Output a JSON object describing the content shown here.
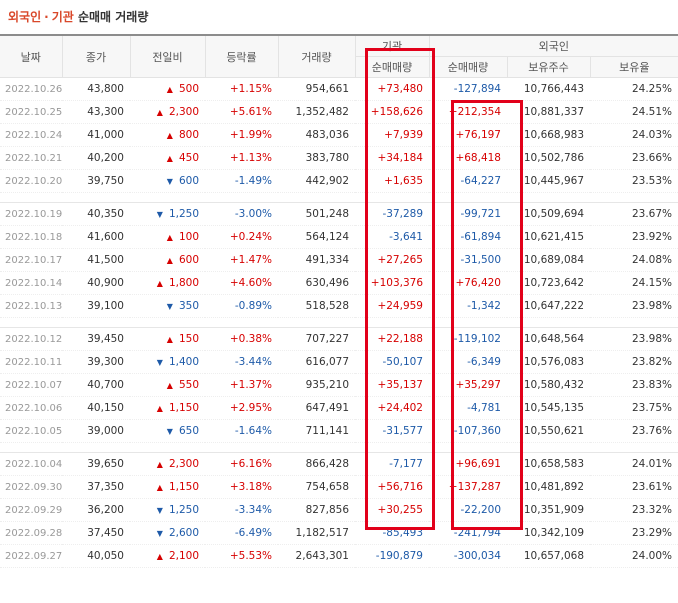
{
  "title": {
    "part1": "외국인",
    "separator": "·",
    "part2": "기관",
    "part3": "순매매 거래량"
  },
  "header": {
    "date": "날짜",
    "close": "종가",
    "change": "전일비",
    "rate": "등락률",
    "volume": "거래량",
    "inst_group": "기관",
    "inst_net": "순매매량",
    "foreign_group": "외국인",
    "foreign_net": "순매매량",
    "foreign_shares": "보유주수",
    "foreign_ratio": "보유율"
  },
  "groups": [
    [
      {
        "date": "2022.10.26",
        "close": "43,800",
        "dir": "up",
        "change": "500",
        "rate": "+1.15%",
        "volume": "954,661",
        "inst": "+73,480",
        "foreign": "-127,894",
        "shares": "10,766,443",
        "ratio": "24.25%"
      },
      {
        "date": "2022.10.25",
        "close": "43,300",
        "dir": "up",
        "change": "2,300",
        "rate": "+5.61%",
        "volume": "1,352,482",
        "inst": "+158,626",
        "foreign": "+212,354",
        "shares": "10,881,337",
        "ratio": "24.51%"
      },
      {
        "date": "2022.10.24",
        "close": "41,000",
        "dir": "up",
        "change": "800",
        "rate": "+1.99%",
        "volume": "483,036",
        "inst": "+7,939",
        "foreign": "+76,197",
        "shares": "10,668,983",
        "ratio": "24.03%"
      },
      {
        "date": "2022.10.21",
        "close": "40,200",
        "dir": "up",
        "change": "450",
        "rate": "+1.13%",
        "volume": "383,780",
        "inst": "+34,184",
        "foreign": "+68,418",
        "shares": "10,502,786",
        "ratio": "23.66%"
      },
      {
        "date": "2022.10.20",
        "close": "39,750",
        "dir": "down",
        "change": "600",
        "rate": "-1.49%",
        "volume": "442,902",
        "inst": "+1,635",
        "foreign": "-64,227",
        "shares": "10,445,967",
        "ratio": "23.53%"
      }
    ],
    [
      {
        "date": "2022.10.19",
        "close": "40,350",
        "dir": "down",
        "change": "1,250",
        "rate": "-3.00%",
        "volume": "501,248",
        "inst": "-37,289",
        "foreign": "-99,721",
        "shares": "10,509,694",
        "ratio": "23.67%"
      },
      {
        "date": "2022.10.18",
        "close": "41,600",
        "dir": "up",
        "change": "100",
        "rate": "+0.24%",
        "volume": "564,124",
        "inst": "-3,641",
        "foreign": "-61,894",
        "shares": "10,621,415",
        "ratio": "23.92%"
      },
      {
        "date": "2022.10.17",
        "close": "41,500",
        "dir": "up",
        "change": "600",
        "rate": "+1.47%",
        "volume": "491,334",
        "inst": "+27,265",
        "foreign": "-31,500",
        "shares": "10,689,084",
        "ratio": "24.08%"
      },
      {
        "date": "2022.10.14",
        "close": "40,900",
        "dir": "up",
        "change": "1,800",
        "rate": "+4.60%",
        "volume": "630,496",
        "inst": "+103,376",
        "foreign": "+76,420",
        "shares": "10,723,642",
        "ratio": "24.15%"
      },
      {
        "date": "2022.10.13",
        "close": "39,100",
        "dir": "down",
        "change": "350",
        "rate": "-0.89%",
        "volume": "518,528",
        "inst": "+24,959",
        "foreign": "-1,342",
        "shares": "10,647,222",
        "ratio": "23.98%"
      }
    ],
    [
      {
        "date": "2022.10.12",
        "close": "39,450",
        "dir": "up",
        "change": "150",
        "rate": "+0.38%",
        "volume": "707,227",
        "inst": "+22,188",
        "foreign": "-119,102",
        "shares": "10,648,564",
        "ratio": "23.98%"
      },
      {
        "date": "2022.10.11",
        "close": "39,300",
        "dir": "down",
        "change": "1,400",
        "rate": "-3.44%",
        "volume": "616,077",
        "inst": "-50,107",
        "foreign": "-6,349",
        "shares": "10,576,083",
        "ratio": "23.82%"
      },
      {
        "date": "2022.10.07",
        "close": "40,700",
        "dir": "up",
        "change": "550",
        "rate": "+1.37%",
        "volume": "935,210",
        "inst": "+35,137",
        "foreign": "+35,297",
        "shares": "10,580,432",
        "ratio": "23.83%"
      },
      {
        "date": "2022.10.06",
        "close": "40,150",
        "dir": "up",
        "change": "1,150",
        "rate": "+2.95%",
        "volume": "647,491",
        "inst": "+24,402",
        "foreign": "-4,781",
        "shares": "10,545,135",
        "ratio": "23.75%"
      },
      {
        "date": "2022.10.05",
        "close": "39,000",
        "dir": "down",
        "change": "650",
        "rate": "-1.64%",
        "volume": "711,141",
        "inst": "-31,577",
        "foreign": "-107,360",
        "shares": "10,550,621",
        "ratio": "23.76%"
      }
    ],
    [
      {
        "date": "2022.10.04",
        "close": "39,650",
        "dir": "up",
        "change": "2,300",
        "rate": "+6.16%",
        "volume": "866,428",
        "inst": "-7,177",
        "foreign": "+96,691",
        "shares": "10,658,583",
        "ratio": "24.01%"
      },
      {
        "date": "2022.09.30",
        "close": "37,350",
        "dir": "up",
        "change": "1,150",
        "rate": "+3.18%",
        "volume": "754,658",
        "inst": "+56,716",
        "foreign": "+137,287",
        "shares": "10,481,892",
        "ratio": "23.61%"
      },
      {
        "date": "2022.09.29",
        "close": "36,200",
        "dir": "down",
        "change": "1,250",
        "rate": "-3.34%",
        "volume": "827,856",
        "inst": "+30,255",
        "foreign": "-22,200",
        "shares": "10,351,909",
        "ratio": "23.32%"
      },
      {
        "date": "2022.09.28",
        "close": "37,450",
        "dir": "down",
        "change": "2,600",
        "rate": "-6.49%",
        "volume": "1,182,517",
        "inst": "-85,493",
        "foreign": "-241,794",
        "shares": "10,342,109",
        "ratio": "23.29%"
      },
      {
        "date": "2022.09.27",
        "close": "40,050",
        "dir": "up",
        "change": "2,100",
        "rate": "+5.53%",
        "volume": "2,643,301",
        "inst": "-190,879",
        "foreign": "-300,034",
        "shares": "10,657,068",
        "ratio": "24.00%"
      }
    ]
  ],
  "colors": {
    "up": "#d60000",
    "down": "#1e5aa8",
    "highlight": "#e2001a",
    "title": "#d9482a"
  },
  "icons": {
    "up": "up-triangle-icon",
    "down": "down-triangle-icon"
  }
}
